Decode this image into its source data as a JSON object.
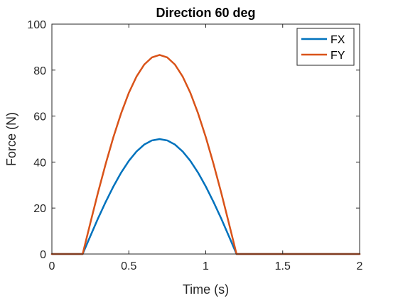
{
  "chart_data": {
    "type": "line",
    "title": "Direction 60 deg",
    "xlabel": "Time (s)",
    "ylabel": "Force (N)",
    "xlim": [
      0,
      2
    ],
    "ylim": [
      0,
      100
    ],
    "xticks": [
      0,
      0.5,
      1,
      1.5,
      2
    ],
    "xtick_labels": [
      "0",
      "0.5",
      "1",
      "1.5",
      "2"
    ],
    "yticks": [
      0,
      20,
      40,
      60,
      80,
      100
    ],
    "ytick_labels": [
      "0",
      "20",
      "40",
      "60",
      "80",
      "100"
    ],
    "grid": false,
    "legend_position": "top-right",
    "x": [
      0,
      0.1,
      0.2,
      0.25,
      0.3,
      0.35,
      0.4,
      0.45,
      0.5,
      0.55,
      0.6,
      0.65,
      0.7,
      0.75,
      0.8,
      0.85,
      0.9,
      0.95,
      1.0,
      1.05,
      1.1,
      1.15,
      1.2,
      1.3,
      1.4,
      1.5,
      1.6,
      1.7,
      1.8,
      1.9,
      2.0
    ],
    "series": [
      {
        "name": "FX",
        "color": "#0072BD",
        "values": [
          0,
          0,
          0,
          7.8,
          15.5,
          22.7,
          29.4,
          35.4,
          40.5,
          44.6,
          47.6,
          49.4,
          50.0,
          49.4,
          47.6,
          44.6,
          40.5,
          35.4,
          29.4,
          22.7,
          15.5,
          7.8,
          0,
          0,
          0,
          0,
          0,
          0,
          0,
          0,
          0
        ]
      },
      {
        "name": "FY",
        "color": "#D95319",
        "values": [
          0,
          0,
          0,
          13.5,
          26.8,
          39.3,
          50.9,
          61.2,
          70.1,
          77.2,
          82.4,
          85.5,
          86.6,
          85.5,
          82.4,
          77.2,
          70.1,
          61.2,
          50.9,
          39.3,
          26.8,
          13.5,
          0,
          0,
          0,
          0,
          0,
          0,
          0,
          0,
          0
        ]
      }
    ]
  }
}
